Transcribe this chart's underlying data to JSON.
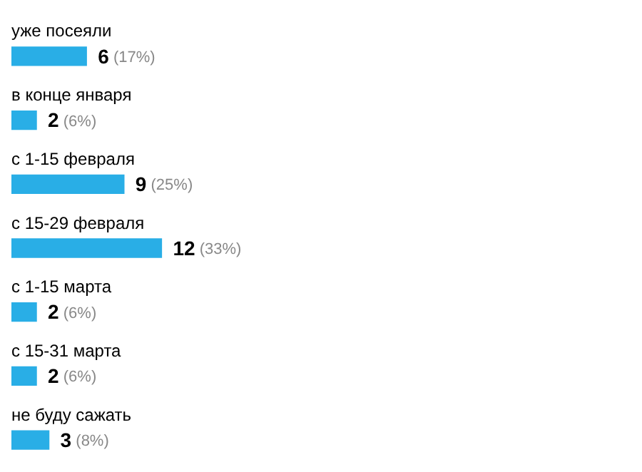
{
  "chart_data": {
    "type": "bar",
    "orientation": "horizontal",
    "categories": [
      "уже посеяли",
      "в конце января",
      "с 1-15 февраля",
      "с 15-29 февраля",
      "с 1-15 марта",
      "с 15-31 марта",
      "не буду сажать"
    ],
    "values": [
      6,
      2,
      9,
      12,
      2,
      2,
      3
    ],
    "value_labels": [
      "6 (17%)",
      "2 (6%)",
      "9 (25%)",
      "12 (33%)",
      "2 (6%)",
      "2 (6%)",
      "3 (8%)"
    ],
    "color": "#29aee6"
  }
}
